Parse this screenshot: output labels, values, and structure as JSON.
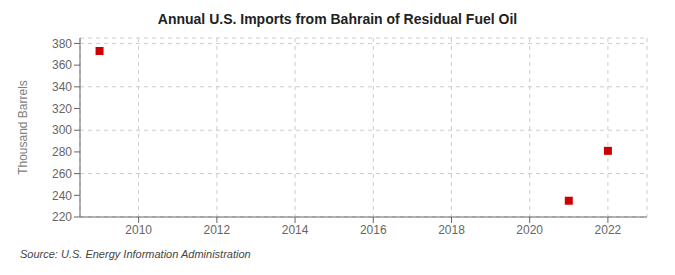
{
  "chart_data": {
    "type": "scatter",
    "title": "Annual U.S. Imports from Bahrain of Residual Fuel Oil",
    "ylabel": "Thousand Barrels",
    "annotations": [
      "Source: U.S. Energy Information Administration"
    ],
    "x": [
      2009,
      2021,
      2022
    ],
    "values": [
      373,
      235,
      281
    ],
    "color": "#cc0000",
    "marker": "square",
    "xlim": [
      2008.5,
      2023.0
    ],
    "ylim": [
      220,
      385
    ],
    "xticks": [
      2010,
      2012,
      2014,
      2016,
      2018,
      2020,
      2022
    ],
    "yticks": [
      220,
      240,
      260,
      280,
      300,
      320,
      340,
      360,
      380
    ],
    "grid": true
  }
}
